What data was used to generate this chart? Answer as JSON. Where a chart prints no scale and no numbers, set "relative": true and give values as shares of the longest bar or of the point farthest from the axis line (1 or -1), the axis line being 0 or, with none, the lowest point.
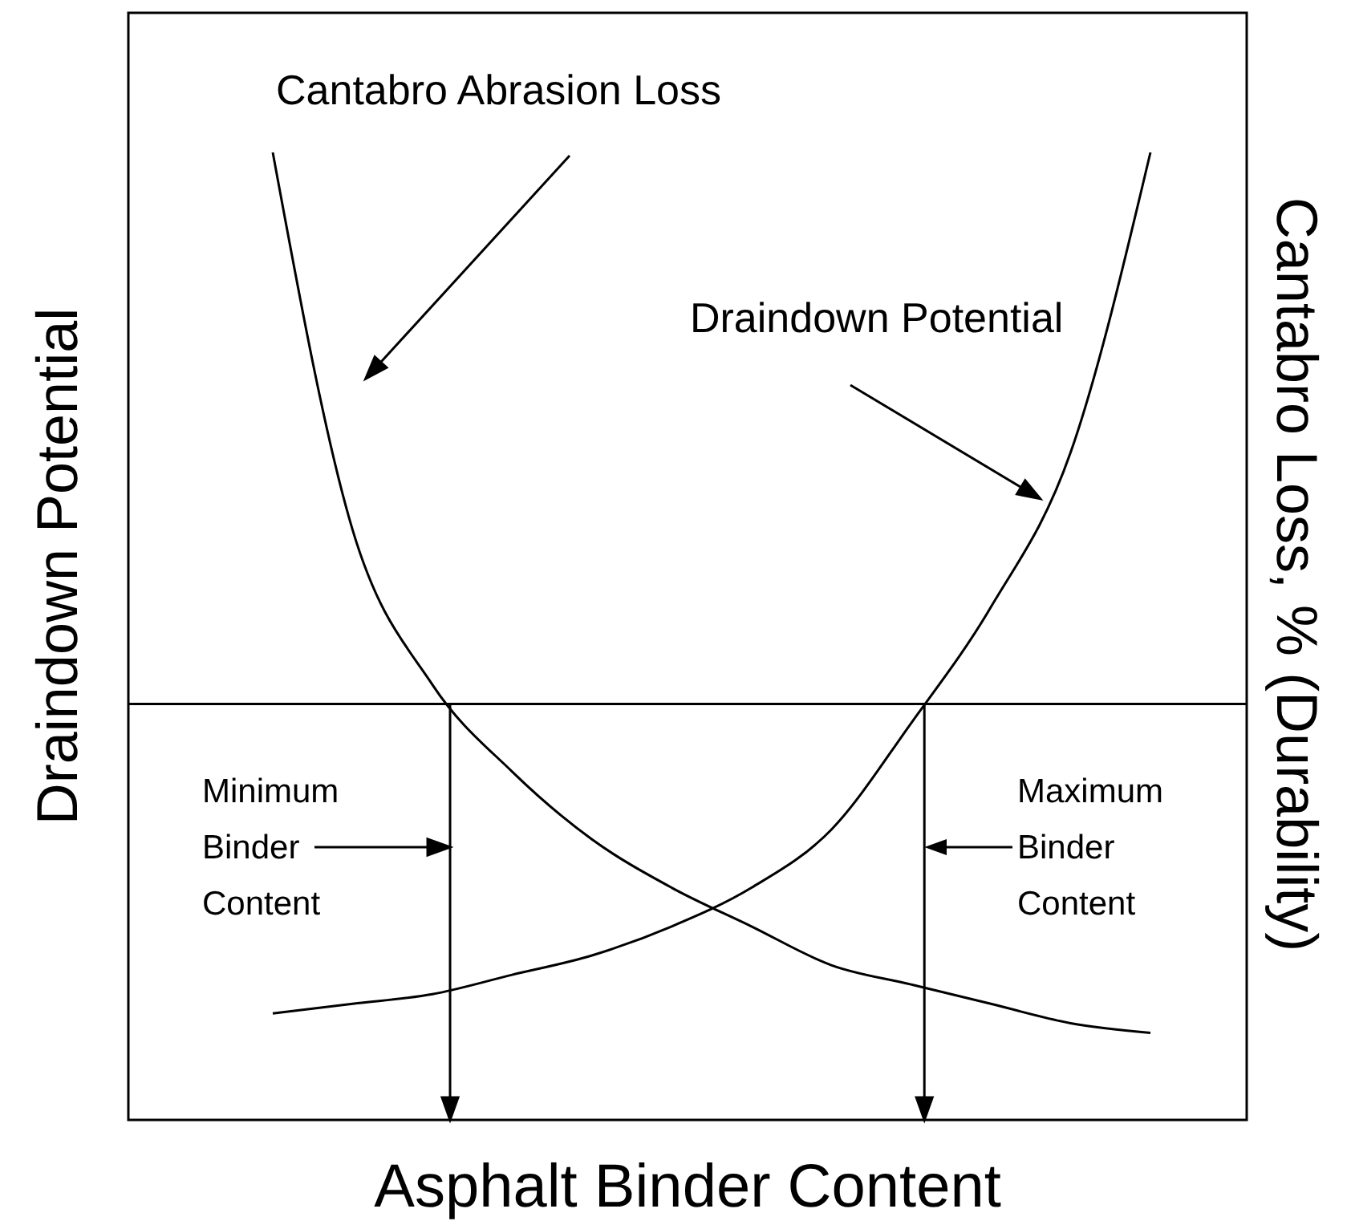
{
  "chart_data": {
    "type": "line",
    "relative": true,
    "xlabel": "Asphalt Binder Content",
    "ylabel": "Draindown Potential",
    "y2label": "Cantabro Loss, % (Durability)",
    "categories": [
      null,
      null,
      null,
      null,
      null,
      null,
      null,
      null,
      null,
      null,
      null,
      null
    ],
    "series": [
      {
        "name": "Cantabro Abrasion Loss",
        "color": "#000000",
        "values": [
          1.0,
          0.61,
          0.45,
          0.36,
          0.29,
          0.24,
          0.2,
          0.16,
          0.14,
          0.12,
          0.1,
          0.09
        ]
      },
      {
        "name": "Draindown Potential",
        "color": "#000000",
        "values": [
          0.11,
          0.12,
          0.13,
          0.15,
          0.17,
          0.2,
          0.24,
          0.3,
          0.41,
          0.53,
          0.69,
          1.0
        ]
      }
    ],
    "ref_lines": [
      {
        "axis": "y",
        "value": 0.43,
        "color": "#000000"
      }
    ],
    "annotations": [
      "Minimum Binder Content",
      "Maximum Binder Content"
    ],
    "marker": "none",
    "line_style": "solid"
  }
}
